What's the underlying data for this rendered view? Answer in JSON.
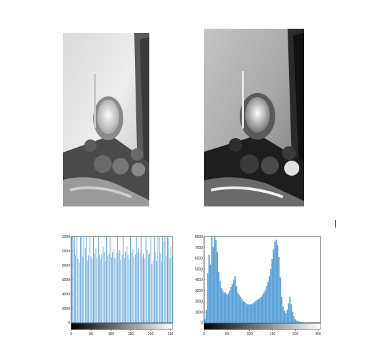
{
  "images": [
    {
      "name": "original-grayscale-photo",
      "tone": "low-contrast"
    },
    {
      "name": "equalized-grayscale-photo",
      "tone": "high-contrast"
    }
  ],
  "chart_data": [
    {
      "type": "bar",
      "title": "",
      "xlabel": "",
      "ylabel": "",
      "xlim": [
        0,
        255
      ],
      "ylim": [
        0,
        12000
      ],
      "xticks": [
        "0",
        "50",
        "100",
        "150",
        "200",
        "250"
      ],
      "yticks": [
        "0",
        "2000",
        "4000",
        "6000",
        "8000",
        "10000",
        "12000"
      ],
      "bar_color": "#5aa0d8",
      "x": [
        2,
        5,
        8,
        11,
        14,
        17,
        20,
        23,
        26,
        29,
        32,
        35,
        38,
        41,
        44,
        47,
        50,
        53,
        56,
        59,
        62,
        65,
        68,
        71,
        74,
        77,
        80,
        83,
        86,
        89,
        92,
        95,
        98,
        101,
        104,
        107,
        110,
        113,
        116,
        119,
        122,
        125,
        128,
        131,
        134,
        137,
        140,
        143,
        146,
        149,
        152,
        155,
        158,
        161,
        164,
        167,
        170,
        173,
        176,
        179,
        182,
        185,
        188,
        191,
        194,
        197,
        200,
        203,
        206,
        209,
        212,
        215,
        218,
        221,
        224,
        227,
        230,
        233,
        236,
        239,
        242,
        245,
        248,
        251,
        254
      ],
      "values": [
        12000,
        12000,
        12000,
        9400,
        12000,
        8900,
        8400,
        12000,
        12000,
        9200,
        12000,
        10400,
        12000,
        8700,
        9400,
        12000,
        9200,
        8800,
        12000,
        9700,
        10300,
        9000,
        12000,
        9500,
        8900,
        9600,
        10600,
        9800,
        8600,
        12000,
        9300,
        9600,
        12000,
        9100,
        9800,
        10300,
        9000,
        9600,
        12000,
        9800,
        10100,
        8800,
        9500,
        12000,
        9000,
        9900,
        10600,
        9400,
        8800,
        12000,
        9700,
        10200,
        9100,
        9500,
        12000,
        9800,
        10400,
        9700,
        12000,
        9200,
        9600,
        8900,
        12000,
        10100,
        9500,
        9700,
        12000,
        8200,
        8700,
        12000,
        9800,
        8600,
        12000,
        12000,
        9700,
        8500,
        12000,
        11400,
        12000,
        9300,
        12000,
        12000,
        9000,
        10600,
        9400
      ]
    },
    {
      "type": "bar",
      "title": "",
      "xlabel": "",
      "ylabel": "",
      "xlim": [
        0,
        255
      ],
      "ylim": [
        0,
        8000
      ],
      "xticks": [
        "0",
        "50",
        "100",
        "150",
        "200",
        "250"
      ],
      "yticks": [
        "0",
        "1000",
        "2000",
        "3000",
        "4000",
        "5000",
        "6000",
        "7000",
        "8000"
      ],
      "bar_color": "#5aa0d8",
      "x": [
        2,
        5,
        8,
        11,
        14,
        17,
        20,
        23,
        26,
        29,
        32,
        35,
        38,
        41,
        44,
        47,
        50,
        53,
        56,
        59,
        62,
        65,
        68,
        71,
        74,
        77,
        80,
        83,
        86,
        89,
        92,
        95,
        98,
        101,
        104,
        107,
        110,
        113,
        116,
        119,
        122,
        125,
        128,
        131,
        134,
        137,
        140,
        143,
        146,
        149,
        152,
        155,
        158,
        161,
        164,
        167,
        170,
        173,
        176,
        179,
        182,
        185,
        188,
        191,
        194,
        197,
        200,
        203,
        206,
        209,
        212,
        215,
        218,
        221,
        224,
        227,
        230,
        233,
        236,
        239,
        242,
        245,
        248,
        251,
        254
      ],
      "values": [
        300,
        1200,
        4600,
        6300,
        5400,
        8000,
        7000,
        8000,
        7700,
        6600,
        4700,
        3900,
        3200,
        3000,
        2800,
        2800,
        2600,
        2700,
        3000,
        3300,
        3600,
        4000,
        4300,
        3400,
        2800,
        2600,
        2400,
        2200,
        2000,
        1900,
        1800,
        1700,
        1700,
        1700,
        1700,
        1800,
        1900,
        2000,
        2100,
        2200,
        2300,
        2400,
        2600,
        2800,
        3000,
        3400,
        3800,
        4300,
        5000,
        5900,
        6800,
        7500,
        7700,
        7200,
        6100,
        4200,
        2400,
        1500,
        1100,
        900,
        1200,
        1800,
        2400,
        1700,
        1000,
        600,
        300,
        200,
        150,
        100,
        80,
        60,
        40,
        30,
        20,
        10,
        8,
        6,
        4,
        3,
        2,
        2,
        1,
        1,
        1
      ]
    }
  ]
}
